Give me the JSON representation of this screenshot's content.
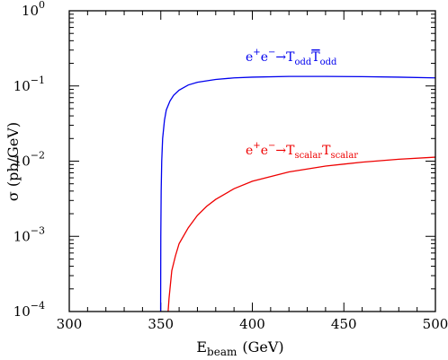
{
  "chart_data": {
    "type": "line",
    "xlabel": "E",
    "xlabel_sub": "beam",
    "xlabel_unit": "(GeV)",
    "ylabel": "σ (pb/GeV)",
    "xlim": [
      300,
      500
    ],
    "ylim": [
      0.0001,
      1
    ],
    "yscale": "log",
    "x_ticks": [
      300,
      350,
      400,
      450,
      500
    ],
    "y_ticks": [
      {
        "value": 1,
        "base": "10",
        "exp": "0"
      },
      {
        "value": 0.1,
        "base": "10",
        "exp": "−1"
      },
      {
        "value": 0.01,
        "base": "10",
        "exp": "−2"
      },
      {
        "value": 0.001,
        "base": "10",
        "exp": "−3"
      },
      {
        "value": 0.0001,
        "base": "10",
        "exp": "−4"
      }
    ],
    "grid": false,
    "series": [
      {
        "color": "#0000ee",
        "label": {
          "a": "e",
          "a_sup": "+",
          "b": "e",
          "b_sup": "−",
          "arrow": "→",
          "c": "T",
          "c_sub": "odd",
          "d": "T",
          "d_sub": "odd",
          "d_overline": true
        },
        "x": [
          349.9,
          350.0,
          350.2,
          350.5,
          351,
          352,
          353,
          355,
          357,
          360,
          365,
          370,
          380,
          390,
          400,
          420,
          440,
          460,
          480,
          500
        ],
        "y": [
          0.0001,
          0.001,
          0.004,
          0.01,
          0.02,
          0.035,
          0.048,
          0.063,
          0.075,
          0.088,
          0.103,
          0.112,
          0.122,
          0.128,
          0.131,
          0.134,
          0.134,
          0.133,
          0.131,
          0.128
        ]
      },
      {
        "color": "#ee0000",
        "label": {
          "a": "e",
          "a_sup": "+",
          "b": "e",
          "b_sup": "−",
          "arrow": "→",
          "c": "T",
          "c_sub": "scalar",
          "d": "T",
          "d_sub": "scalar",
          "d_overline": false
        },
        "x": [
          354.0,
          354.5,
          356,
          358,
          360,
          365,
          370,
          375,
          380,
          390,
          400,
          420,
          440,
          460,
          480,
          500
        ],
        "y": [
          0.0001,
          0.00015,
          0.00035,
          0.00055,
          0.0008,
          0.0013,
          0.0019,
          0.0025,
          0.0031,
          0.0043,
          0.0054,
          0.0072,
          0.0086,
          0.0097,
          0.0106,
          0.0113
        ]
      }
    ]
  }
}
